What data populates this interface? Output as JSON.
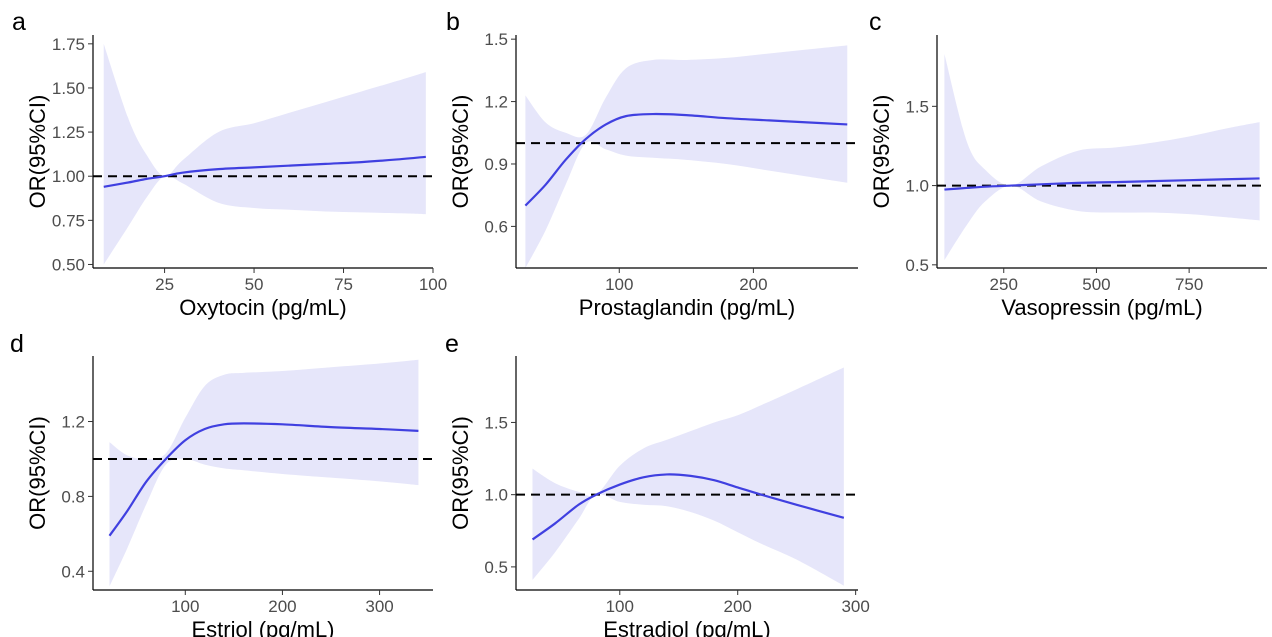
{
  "chart_data": [
    {
      "type": "line",
      "panel": "a",
      "xlabel": "Oxytocin (pg/mL)",
      "ylabel": "OR(95%CI)",
      "xlim": [
        5,
        100
      ],
      "ylim": [
        0.48,
        1.8
      ],
      "xticks": [
        25,
        50,
        75,
        100
      ],
      "xtick_labels": [
        "25",
        "50",
        "75",
        "100"
      ],
      "yticks": [
        0.5,
        0.75,
        1.0,
        1.25,
        1.5,
        1.75
      ],
      "ytick_labels": [
        "0.50",
        "0.75",
        "1.00",
        "1.25",
        "1.50",
        "1.75"
      ],
      "reference_line": 1.0,
      "series": [
        {
          "x": [
            8,
            15,
            20,
            25,
            30,
            40,
            50,
            60,
            70,
            80,
            90,
            98
          ],
          "y": [
            0.94,
            0.965,
            0.985,
            1.0,
            1.02,
            1.04,
            1.05,
            1.06,
            1.07,
            1.08,
            1.095,
            1.11
          ],
          "lower": [
            0.5,
            0.72,
            0.88,
            1.0,
            0.96,
            0.85,
            0.82,
            0.81,
            0.8,
            0.795,
            0.79,
            0.785
          ],
          "upper": [
            1.75,
            1.32,
            1.12,
            1.0,
            1.09,
            1.25,
            1.3,
            1.36,
            1.42,
            1.48,
            1.54,
            1.59
          ]
        }
      ]
    },
    {
      "type": "line",
      "panel": "b",
      "xlabel": "Prostaglandin (pg/mL)",
      "ylabel": "OR(95%CI)",
      "xlim": [
        23,
        278
      ],
      "ylim": [
        0.4,
        1.52
      ],
      "xticks": [
        100,
        200
      ],
      "xtick_labels": [
        "100",
        "200"
      ],
      "yticks": [
        0.6,
        0.9,
        1.2,
        1.5
      ],
      "ytick_labels": [
        "0.6",
        "0.9",
        "1.2",
        "1.5"
      ],
      "reference_line": 1.0,
      "series": [
        {
          "x": [
            30,
            45,
            60,
            75,
            90,
            105,
            125,
            150,
            180,
            210,
            240,
            270
          ],
          "y": [
            0.7,
            0.8,
            0.92,
            1.02,
            1.09,
            1.13,
            1.14,
            1.135,
            1.12,
            1.11,
            1.1,
            1.09
          ],
          "lower": [
            0.4,
            0.58,
            0.8,
            1.0,
            0.97,
            0.94,
            0.93,
            0.92,
            0.9,
            0.87,
            0.84,
            0.81
          ],
          "upper": [
            1.23,
            1.1,
            1.05,
            1.04,
            1.22,
            1.36,
            1.4,
            1.4,
            1.41,
            1.43,
            1.45,
            1.47
          ]
        }
      ]
    },
    {
      "type": "line",
      "panel": "c",
      "xlabel": "Vasopressin (pg/mL)",
      "ylabel": "OR(95%CI)",
      "xlim": [
        70,
        960
      ],
      "ylim": [
        0.48,
        1.95
      ],
      "xticks": [
        250,
        500,
        750
      ],
      "xtick_labels": [
        "250",
        "500",
        "750"
      ],
      "yticks": [
        0.5,
        1.0,
        1.5
      ],
      "ytick_labels": [
        "0.5",
        "1.0",
        "1.5"
      ],
      "reference_line": 1.0,
      "series": [
        {
          "x": [
            90,
            150,
            200,
            270,
            350,
            450,
            550,
            650,
            750,
            850,
            940
          ],
          "y": [
            0.975,
            0.985,
            0.993,
            1.0,
            1.008,
            1.017,
            1.022,
            1.028,
            1.034,
            1.04,
            1.045
          ],
          "lower": [
            0.53,
            0.75,
            0.9,
            1.0,
            0.9,
            0.84,
            0.83,
            0.83,
            0.82,
            0.8,
            0.78
          ],
          "upper": [
            1.83,
            1.28,
            1.1,
            1.0,
            1.12,
            1.22,
            1.24,
            1.27,
            1.31,
            1.36,
            1.4
          ]
        }
      ]
    },
    {
      "type": "line",
      "panel": "d",
      "xlabel": "Estriol (pg/mL)",
      "ylabel": "OR(95%CI)",
      "xlim": [
        5,
        355
      ],
      "ylim": [
        0.3,
        1.55
      ],
      "xticks": [
        100,
        200,
        300
      ],
      "xtick_labels": [
        "100",
        "200",
        "300"
      ],
      "yticks": [
        0.4,
        0.8,
        1.2
      ],
      "ytick_labels": [
        "0.4",
        "0.8",
        "1.2"
      ],
      "reference_line": 1.0,
      "series": [
        {
          "x": [
            22,
            40,
            60,
            80,
            100,
            120,
            140,
            160,
            200,
            250,
            300,
            340
          ],
          "y": [
            0.59,
            0.72,
            0.88,
            1.0,
            1.1,
            1.16,
            1.185,
            1.19,
            1.185,
            1.17,
            1.16,
            1.15
          ],
          "lower": [
            0.32,
            0.52,
            0.76,
            0.97,
            1.0,
            0.97,
            0.95,
            0.94,
            0.92,
            0.9,
            0.88,
            0.86
          ],
          "upper": [
            1.09,
            1.02,
            1.0,
            1.03,
            1.22,
            1.39,
            1.45,
            1.46,
            1.47,
            1.49,
            1.51,
            1.53
          ]
        }
      ]
    },
    {
      "type": "line",
      "panel": "e",
      "xlabel": "Estradiol (pg/mL)",
      "ylabel": "OR(95%CI)",
      "xlim": [
        12,
        302
      ],
      "ylim": [
        0.34,
        1.96
      ],
      "xticks": [
        100,
        200,
        300
      ],
      "xtick_labels": [
        "100",
        "200",
        "300"
      ],
      "yticks": [
        0.5,
        1.0,
        1.5
      ],
      "ytick_labels": [
        "0.5",
        "1.0",
        "1.5"
      ],
      "reference_line": 1.0,
      "series": [
        {
          "x": [
            26,
            45,
            65,
            80,
            100,
            120,
            140,
            160,
            180,
            200,
            220,
            250,
            290
          ],
          "y": [
            0.69,
            0.8,
            0.93,
            1.0,
            1.07,
            1.12,
            1.14,
            1.13,
            1.1,
            1.05,
            1.0,
            0.93,
            0.84
          ],
          "lower": [
            0.41,
            0.6,
            0.83,
            1.0,
            0.95,
            0.93,
            0.92,
            0.88,
            0.82,
            0.74,
            0.66,
            0.55,
            0.37
          ],
          "upper": [
            1.18,
            1.08,
            1.02,
            1.0,
            1.2,
            1.32,
            1.38,
            1.44,
            1.5,
            1.55,
            1.62,
            1.73,
            1.88
          ]
        }
      ]
    }
  ],
  "colors": {
    "line": "#4040e0",
    "band": "#e6e6fa",
    "reference": "#000000"
  }
}
